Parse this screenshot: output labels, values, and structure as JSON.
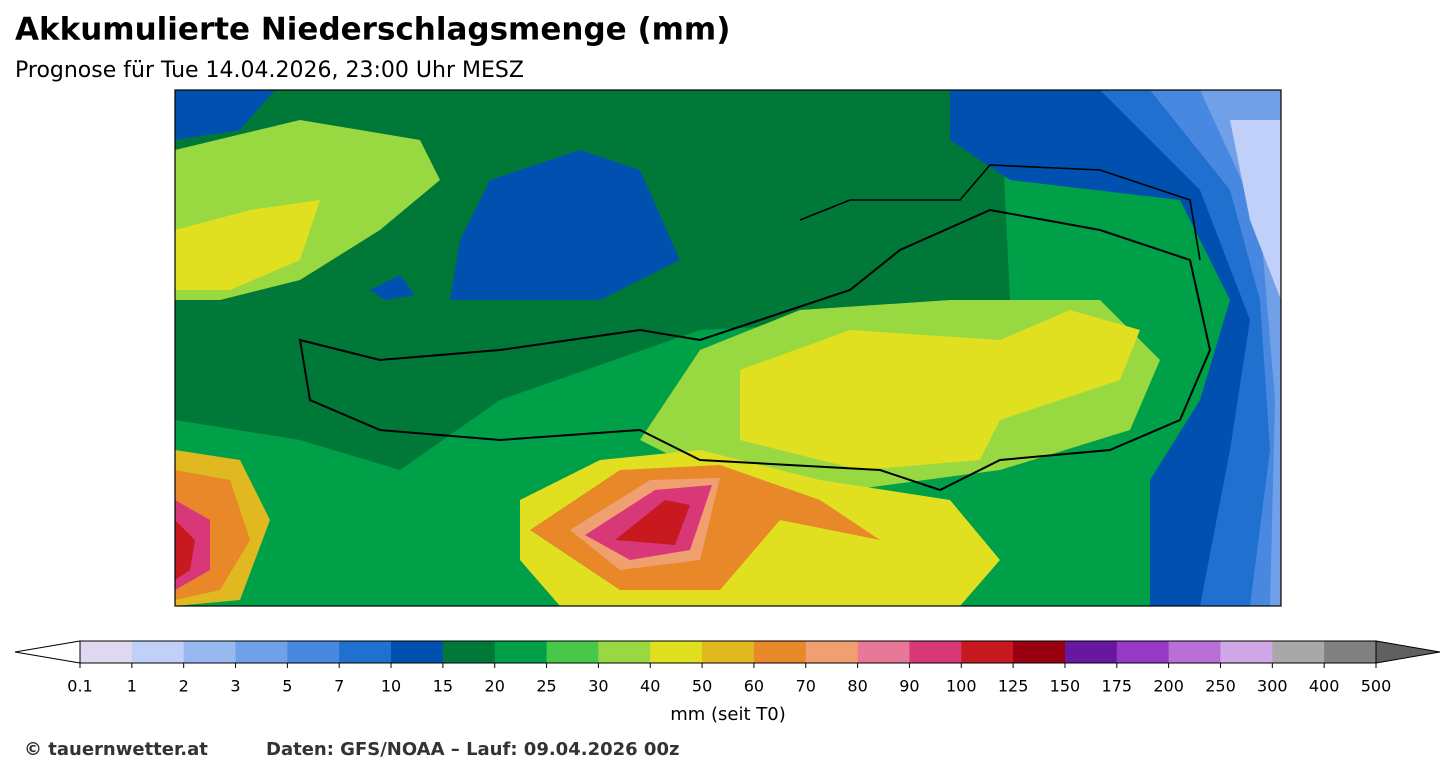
{
  "header": {
    "title": "Akkumulierte Niederschlagsmenge (mm)",
    "subtitle": "Prognose für Tue 14.04.2026, 23:00 Uhr MESZ"
  },
  "colorbar": {
    "ticks": [
      0.1,
      1,
      2,
      3,
      5,
      7,
      10,
      15,
      20,
      25,
      30,
      40,
      50,
      60,
      70,
      80,
      90,
      100,
      125,
      150,
      175,
      200,
      250,
      300,
      400,
      500
    ],
    "colors": [
      "#e0d8f0",
      "#c0d0f8",
      "#98b8f0",
      "#70a0e8",
      "#4888e0",
      "#2070d0",
      "#0050b0",
      "#007838",
      "#00a048",
      "#48c848",
      "#98d840",
      "#e0e020",
      "#e0b820",
      "#e88828",
      "#f0a070",
      "#e87898",
      "#d83878",
      "#c81820",
      "#980010",
      "#6818a0",
      "#9838c8",
      "#b870d8",
      "#d0a8e8",
      "#a8a8a8",
      "#808080"
    ],
    "under_color": "#ffffff",
    "over_color": "#606060",
    "label": "mm (seit T0)"
  },
  "footer": {
    "copyright": "© tauernwetter.at",
    "source": "Daten: GFS/NOAA – Lauf: 09.04.2026 00z"
  }
}
